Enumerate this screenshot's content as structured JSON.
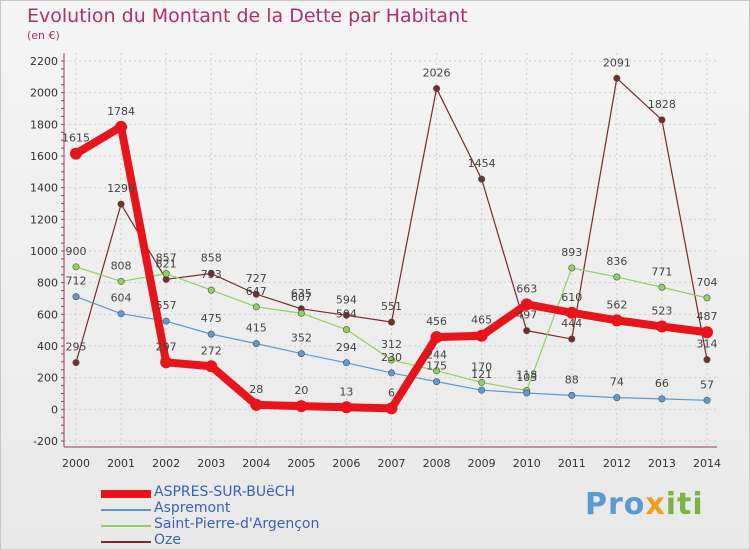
{
  "chart_data": {
    "type": "line",
    "title": "Evolution du Montant de la Dette par Habitant",
    "subtitle": "(en €)",
    "xlabel": "",
    "ylabel": "",
    "ylim": [
      -200,
      2200
    ],
    "yticks": [
      -200,
      0,
      200,
      400,
      600,
      800,
      1000,
      1200,
      1400,
      1600,
      1800,
      2000,
      2200
    ],
    "categories": [
      "2000",
      "2001",
      "2002",
      "2003",
      "2004",
      "2005",
      "2006",
      "2007",
      "2008",
      "2009",
      "2010",
      "2011",
      "2012",
      "2013",
      "2014"
    ],
    "grid": true,
    "legend_position": "bottom-left",
    "series": [
      {
        "name": "ASPRES-SUR-BUëCH",
        "color": "#e8141b",
        "values": [
          1615,
          1784,
          297,
          272,
          28,
          20,
          13,
          6,
          456,
          465,
          663,
          610,
          562,
          523,
          487
        ]
      },
      {
        "name": "Aspremont",
        "color": "#5b9bd5",
        "values": [
          712,
          604,
          557,
          475,
          415,
          352,
          294,
          230,
          175,
          121,
          103,
          88,
          74,
          66,
          57
        ]
      },
      {
        "name": "Saint-Pierre-d'Argençon",
        "color": "#8fd35a",
        "values": [
          900,
          808,
          857,
          753,
          647,
          607,
          504,
          312,
          244,
          170,
          118,
          893,
          836,
          771,
          704
        ]
      },
      {
        "name": "Oze",
        "color": "#7a2a2a",
        "values": [
          295,
          1296,
          821,
          858,
          727,
          635,
          594,
          551,
          2026,
          1454,
          497,
          444,
          2091,
          1828,
          314
        ]
      }
    ]
  },
  "brand": {
    "p1": "Pro",
    "p2": "x",
    "p3": "iti"
  }
}
